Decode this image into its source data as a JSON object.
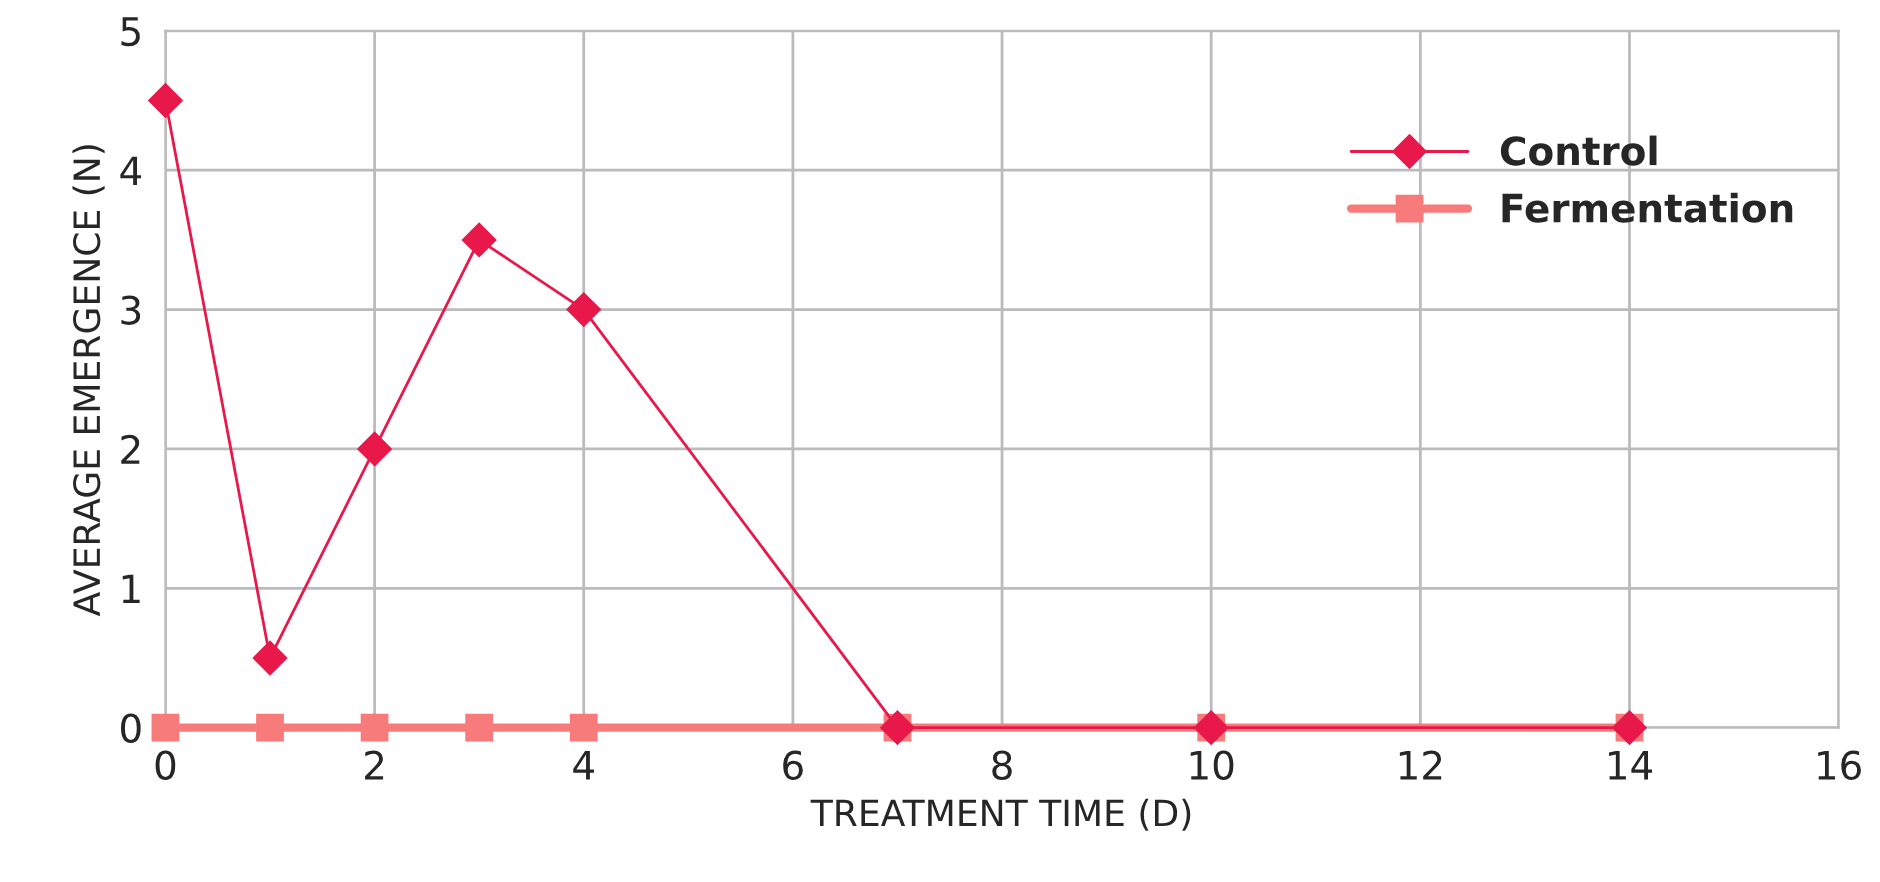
{
  "chart_data": {
    "type": "line",
    "xlabel": "TREATMENT TIME (D)",
    "ylabel": "AVERAGE EMERGENCE (N)",
    "x": [
      0,
      1,
      2,
      3,
      4,
      7,
      10,
      14
    ],
    "series": [
      {
        "name": "Control",
        "color": "#e8194a",
        "marker": "diamond",
        "values": [
          4.5,
          0.5,
          2,
          3.5,
          3,
          0,
          0,
          0
        ]
      },
      {
        "name": "Fermentation",
        "color": "#f77b7b",
        "marker": "square",
        "values": [
          0,
          0,
          0,
          0,
          0,
          0,
          0,
          0
        ]
      }
    ],
    "xlim": [
      0,
      16
    ],
    "xticks": [
      0,
      2,
      4,
      6,
      8,
      10,
      12,
      14,
      16
    ],
    "ylim": [
      0,
      5
    ],
    "yticks": [
      0,
      1,
      2,
      3,
      4,
      5
    ],
    "grid": true,
    "legend": "top right",
    "line_style": "solid"
  }
}
